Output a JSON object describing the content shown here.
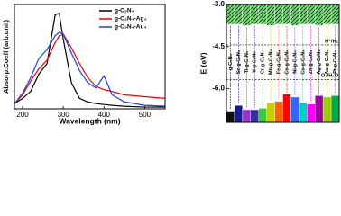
{
  "chart_data": [
    {
      "type": "line",
      "x_label": "Wavelength (nm)",
      "y_label": "Absorp.Coeff (arb.unit)",
      "x": [
        180,
        200,
        220,
        240,
        260,
        280,
        290,
        300,
        320,
        340,
        360,
        380,
        400,
        420,
        450,
        500,
        550
      ],
      "series": [
        {
          "name": "g-C₃N₄",
          "color": "#000000",
          "values": [
            0.3,
            0.6,
            1.0,
            2.0,
            2.6,
            5.4,
            5.5,
            4.0,
            1.5,
            0.6,
            0.4,
            0.3,
            0.25,
            0.2,
            0.15,
            0.1,
            0.1
          ]
        },
        {
          "name": "g-C₃N₄-Ag₄",
          "color": "#e8000b",
          "values": [
            0.3,
            0.8,
            1.6,
            2.3,
            2.8,
            3.8,
            4.2,
            4.3,
            3.5,
            2.6,
            1.8,
            1.3,
            1.1,
            1.0,
            0.8,
            0.7,
            0.6
          ]
        },
        {
          "name": "g-C₃N₄-Au₄",
          "color": "#1f3fd6",
          "values": [
            0.3,
            0.9,
            1.8,
            2.9,
            3.4,
            4.2,
            4.4,
            4.3,
            3.2,
            2.2,
            1.5,
            1.2,
            1.9,
            0.8,
            0.4,
            0.2,
            0.15
          ]
        }
      ],
      "xlim": [
        180,
        550
      ],
      "xticks": [
        200,
        300,
        400,
        500
      ],
      "ylim": [
        0,
        6
      ],
      "legend": "upper right"
    },
    {
      "type": "band",
      "y_label": "E (eV)",
      "categories": [
        "g-C₃N₄",
        "Sc-g-C₃N₄",
        "Ti-g-C₃N₄",
        "V-g-C₃N₄",
        "Cr-g-C₃N₄",
        "Mn-g-C₃N₄",
        "Fe-g-C₃N₄",
        "Co-g-C₃N₄",
        "Ni-g-C₃N₄",
        "Cu-g-C₃N₄",
        "Zn-g-C₃N₄",
        "Ag-g-C₃N₄",
        "Au-g-C₃N₄",
        "Pt-g-C₃N₄"
      ],
      "colors": [
        "#111111",
        "#1a1a8c",
        "#9933cc",
        "#333399",
        "#33cc33",
        "#cccc00",
        "#ff6600",
        "#ff0000",
        "#3366ff",
        "#00cccc",
        "#ff00ff",
        "#990099",
        "#99cc00",
        "#00aa44"
      ],
      "cb_values": [
        -3.7,
        -3.7,
        -3.75,
        -3.7,
        -3.7,
        -3.75,
        -3.7,
        -3.7,
        -3.75,
        -3.7,
        -3.7,
        -3.75,
        -3.7,
        -3.7
      ],
      "vb_values": [
        -6.8,
        -6.6,
        -6.75,
        -6.75,
        -6.7,
        -6.5,
        -6.45,
        -6.2,
        -6.3,
        -6.5,
        -6.55,
        -6.25,
        -6.3,
        -6.25
      ],
      "lines": [
        {
          "value": -4.44,
          "label": "H⁺/H₂"
        },
        {
          "value": -5.67,
          "label": "O₂/H₂O"
        }
      ],
      "ylim": [
        -7.2,
        -3.0
      ],
      "yticks": [
        {
          "value": -3.0,
          "label": "-3.0"
        },
        {
          "value": -4.5,
          "label": "-4.5"
        },
        {
          "value": -6.0,
          "label": "-6.0"
        }
      ]
    }
  ]
}
